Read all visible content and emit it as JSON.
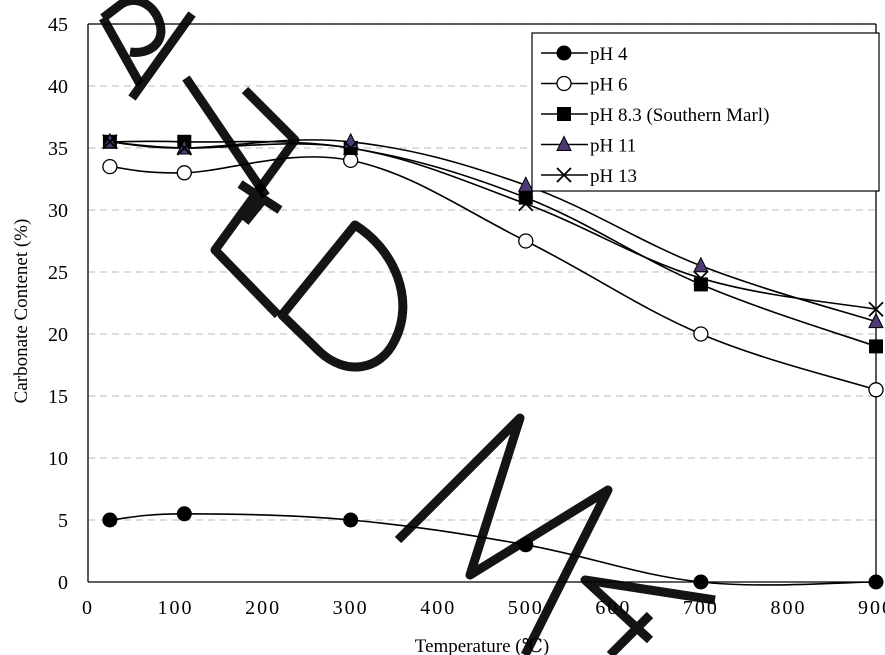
{
  "chart_data": {
    "type": "line",
    "title": "",
    "xlabel": "Temperature (℃)",
    "ylabel": "Carbonate Contenet (%)",
    "xlim": [
      0,
      900
    ],
    "ylim": [
      0,
      45
    ],
    "x_ticks": [
      "0",
      "100",
      "200",
      "300",
      "400",
      "500",
      "600",
      "700",
      "800",
      "900"
    ],
    "y_ticks": [
      "0",
      "5",
      "10",
      "15",
      "20",
      "25",
      "30",
      "35",
      "40",
      "45"
    ],
    "grid": "horizontal dashed",
    "legend_position": "top-right",
    "x": [
      25,
      110,
      300,
      500,
      700,
      900
    ],
    "series": [
      {
        "name": "pH 4",
        "marker": "filled-circle",
        "values": [
          5.0,
          5.5,
          5.0,
          3.0,
          0.0,
          0.0
        ]
      },
      {
        "name": "pH 6",
        "marker": "open-circle",
        "values": [
          33.5,
          33.0,
          34.0,
          27.5,
          20.0,
          15.5
        ]
      },
      {
        "name": "pH 8.3 (Southern Marl)",
        "marker": "filled-square",
        "values": [
          35.5,
          35.5,
          35.0,
          31.0,
          24.0,
          19.0
        ]
      },
      {
        "name": "pH 11",
        "marker": "triangle",
        "values": [
          35.5,
          35.0,
          35.5,
          32.0,
          25.5,
          21.0
        ]
      },
      {
        "name": "pH 13",
        "marker": "cross",
        "values": [
          35.5,
          35.0,
          35.0,
          30.5,
          24.5,
          22.0
        ]
      }
    ]
  },
  "colors": {
    "line": "#000000",
    "grid": "#c8c8c8",
    "triangle_fill": "#4b3a73"
  },
  "watermark": {
    "text": "ACCEPTED MANUSCRIPT",
    "visible_text": "PTED MA"
  }
}
